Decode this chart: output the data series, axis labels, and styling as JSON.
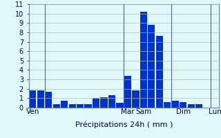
{
  "title": "",
  "xlabel": "Précipitations 24h ( mm )",
  "ylabel": "",
  "bar_color": "#0033cc",
  "background_color": "#e0f8f8",
  "grid_color": "#b0b8cc",
  "ylim": [
    0,
    11
  ],
  "yticks": [
    0,
    1,
    2,
    3,
    4,
    5,
    6,
    7,
    8,
    9,
    10,
    11
  ],
  "values": [
    1.85,
    1.85,
    1.7,
    0.4,
    0.75,
    0.4,
    0.4,
    0.4,
    1.0,
    1.1,
    1.35,
    0.5,
    3.35,
    1.85,
    10.2,
    8.8,
    7.6,
    0.6,
    0.7,
    0.6,
    0.4,
    0.35
  ],
  "day_labels": [
    "Ven",
    "Mar",
    "Sam",
    "Dim",
    "Lun"
  ],
  "day_bar_indices": [
    0,
    12,
    14,
    19,
    23
  ],
  "vline_bar_indices": [
    2,
    12,
    18,
    23
  ],
  "xlabel_fontsize": 8,
  "tick_fontsize": 7,
  "day_label_fontsize": 7.5
}
